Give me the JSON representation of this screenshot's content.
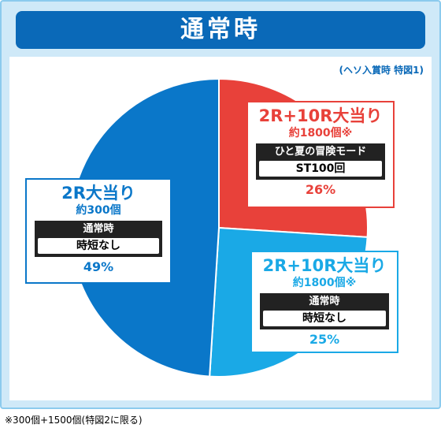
{
  "chart_data": {
    "type": "pie",
    "title": "通常時",
    "subtitle": "(ヘソ入賞時 特図1)",
    "categories": [
      "2R+10R大当り",
      "2R+10R大当り",
      "2R大当り"
    ],
    "values": [
      26,
      25,
      49
    ],
    "value_labels": [
      "26%",
      "25%",
      "49%"
    ],
    "colors": [
      "#e8413a",
      "#1aa9e6",
      "#0a77c9"
    ],
    "payouts": [
      "約1800個※",
      "約1800個※",
      "約300個"
    ],
    "modes": [
      "ひと夏の冒険モード",
      "通常時",
      "通常時"
    ],
    "mode_details": [
      "ST100回",
      "時短なし",
      "時短なし"
    ],
    "footnote": "※300個+1500個(特図2に限る)"
  }
}
